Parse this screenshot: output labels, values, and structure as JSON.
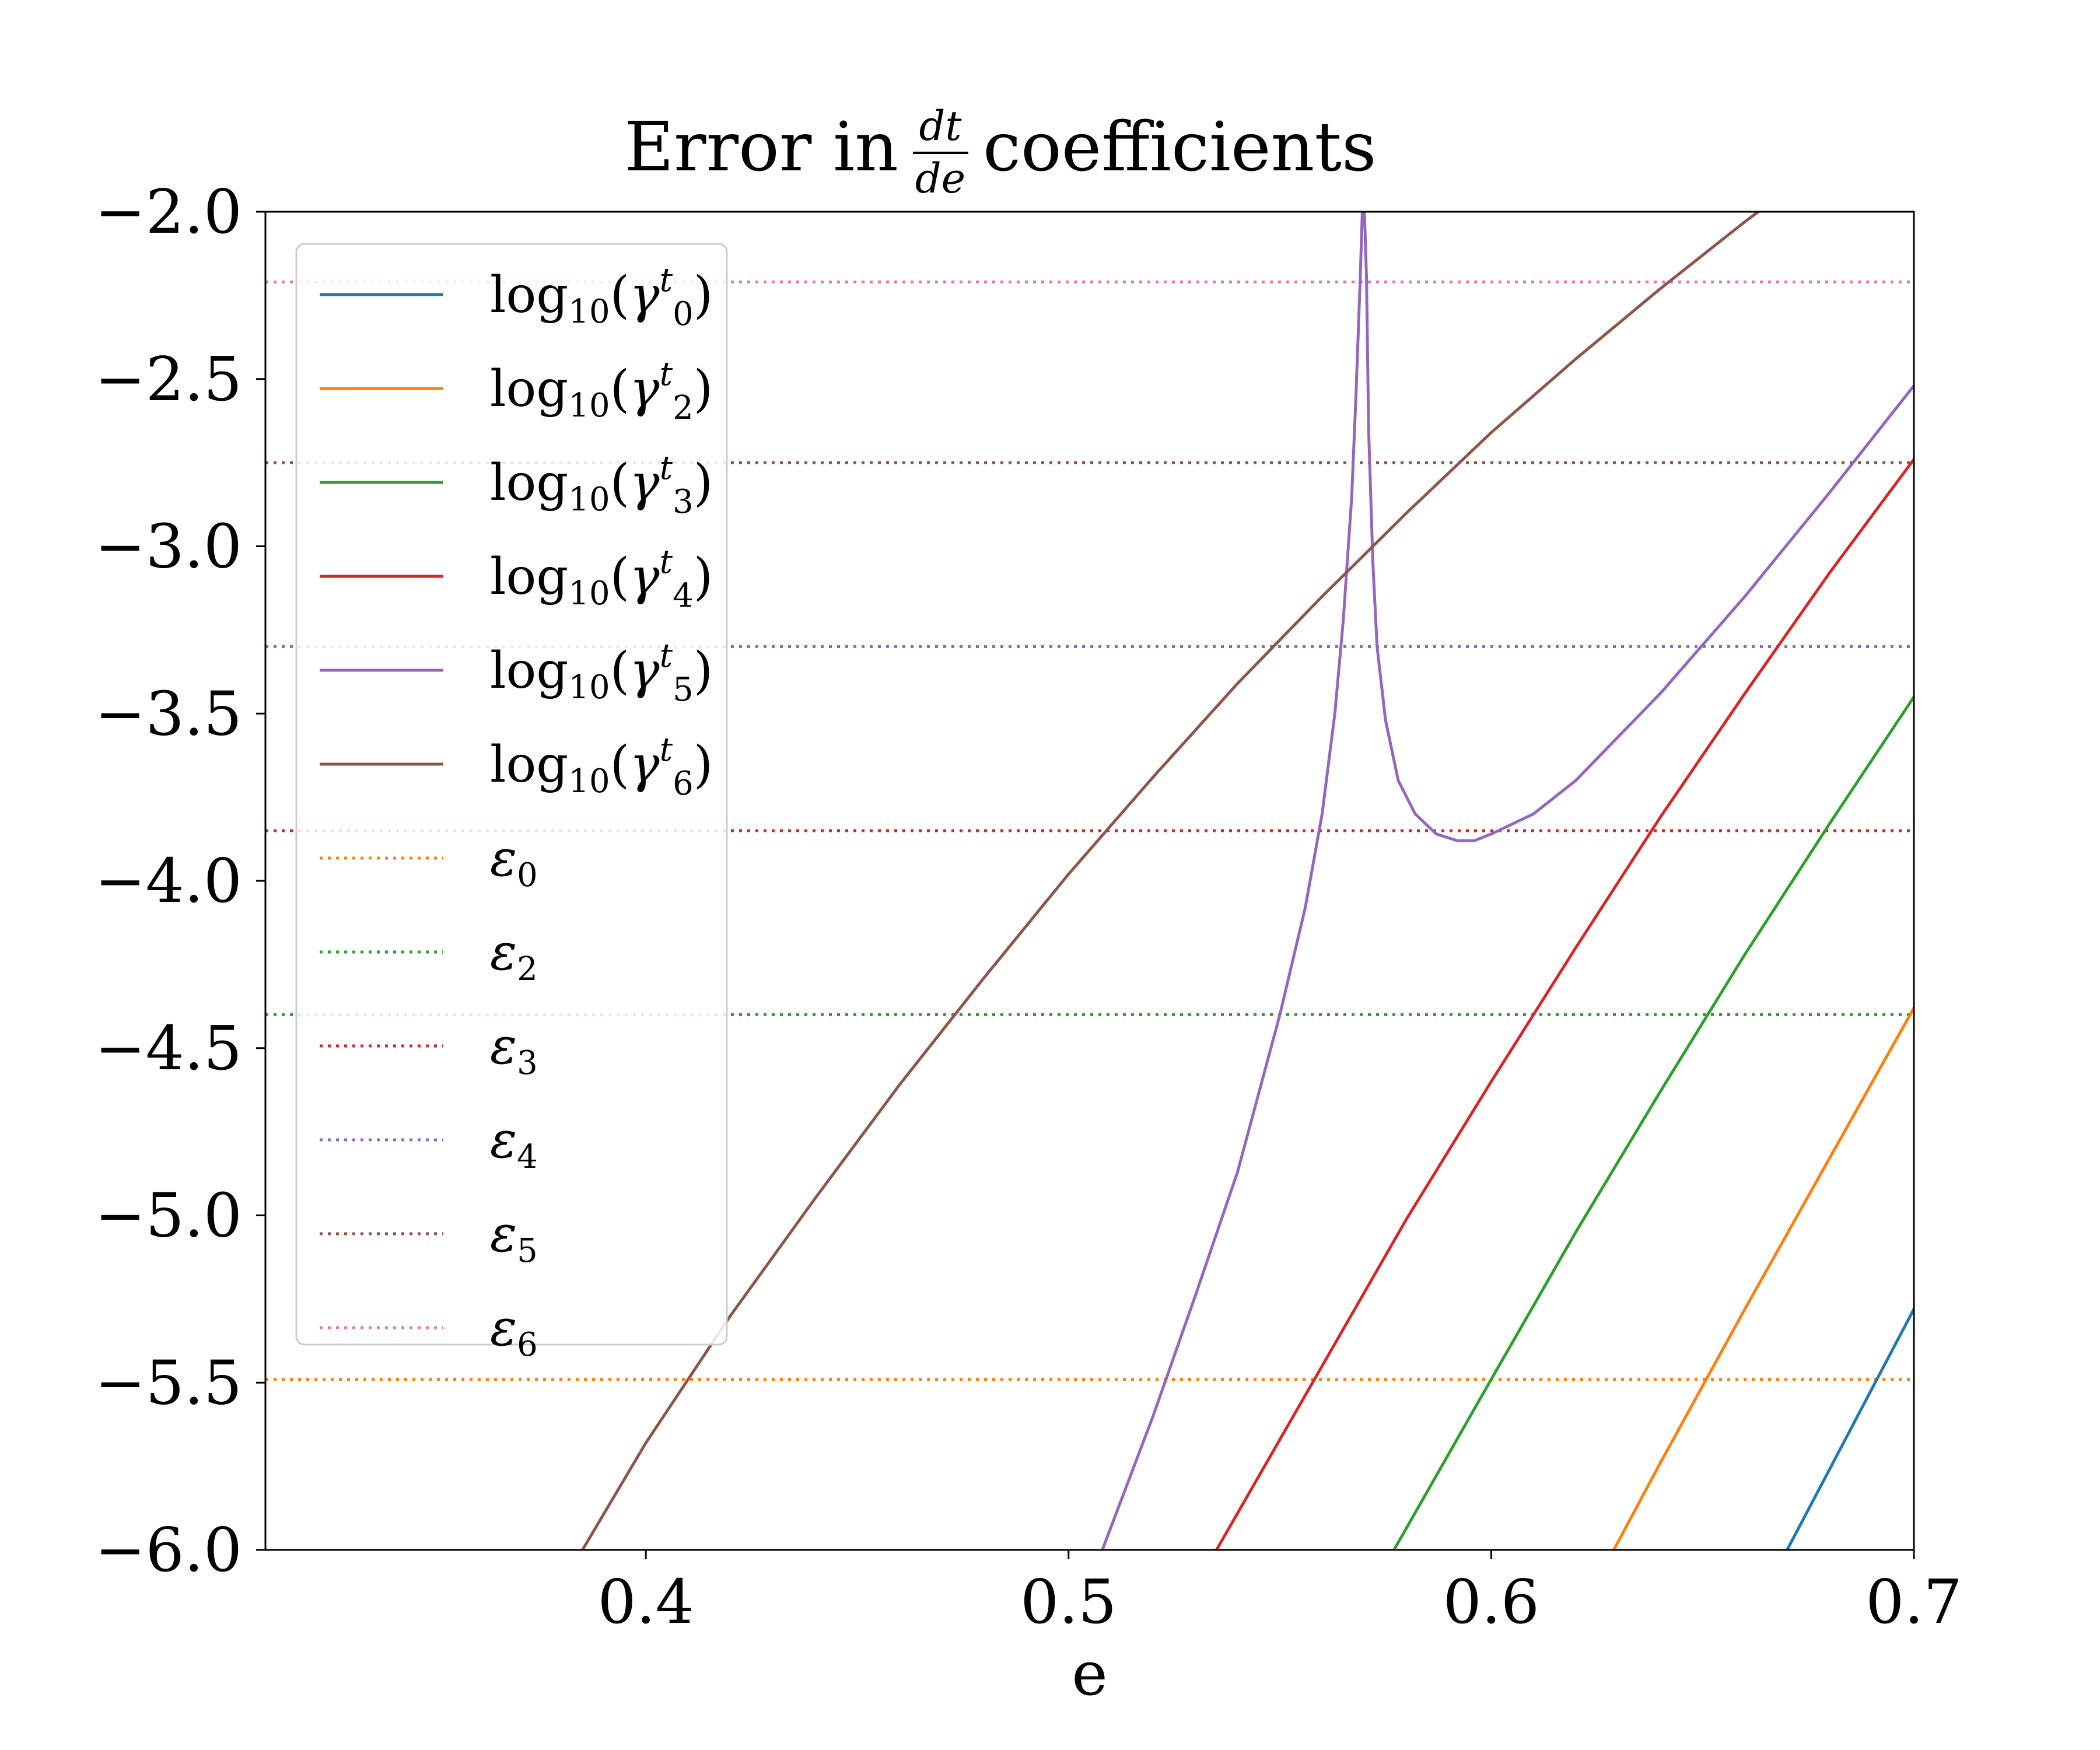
{
  "chart_data": {
    "type": "line",
    "title": {
      "prefix": "Error in",
      "frac_num": "dt",
      "frac_den": "de",
      "suffix": "coefficients"
    },
    "xlabel": "e",
    "ylabel": "",
    "xlim": [
      0.31,
      0.7
    ],
    "ylim": [
      -6.0,
      -2.0
    ],
    "xticks": [
      0.4,
      0.5,
      0.6,
      0.7
    ],
    "xtick_labels": [
      "0.4",
      "0.5",
      "0.6",
      "0.7"
    ],
    "yticks": [
      -2.0,
      -2.5,
      -3.0,
      -3.5,
      -4.0,
      -4.5,
      -5.0,
      -5.5,
      -6.0
    ],
    "ytick_labels": [
      "−2.0",
      "−2.5",
      "−3.0",
      "−3.5",
      "−4.0",
      "−4.5",
      "−5.0",
      "−5.5",
      "−6.0"
    ],
    "grid": false,
    "legend_position": "upper-left",
    "series": [
      {
        "name": "log10(γ0t)",
        "base": "log",
        "sub": "10",
        "greek": "γ",
        "gsub": "0",
        "gsup": "t",
        "color": "#1f77b4",
        "style": "solid",
        "x": [
          0.67,
          0.68,
          0.69,
          0.7
        ],
        "y": [
          -6.0,
          -5.76,
          -5.52,
          -5.28
        ]
      },
      {
        "name": "log10(γ2t)",
        "base": "log",
        "sub": "10",
        "greek": "γ",
        "gsub": "2",
        "gsup": "t",
        "color": "#ff7f0e",
        "style": "solid",
        "x": [
          0.629,
          0.64,
          0.66,
          0.68,
          0.7
        ],
        "y": [
          -6.0,
          -5.74,
          -5.28,
          -4.83,
          -4.38
        ]
      },
      {
        "name": "log10(γ3t)",
        "base": "log",
        "sub": "10",
        "greek": "γ",
        "gsub": "3",
        "gsup": "t",
        "color": "#2ca02c",
        "style": "solid",
        "x": [
          0.577,
          0.6,
          0.62,
          0.64,
          0.66,
          0.68,
          0.7
        ],
        "y": [
          -6.0,
          -5.49,
          -5.05,
          -4.63,
          -4.22,
          -3.83,
          -3.45
        ]
      },
      {
        "name": "log10(γ4t)",
        "base": "log",
        "sub": "10",
        "greek": "γ",
        "gsub": "4",
        "gsup": "t",
        "color": "#d62728",
        "style": "solid",
        "x": [
          0.535,
          0.56,
          0.58,
          0.6,
          0.62,
          0.64,
          0.66,
          0.68,
          0.7
        ],
        "y": [
          -6.0,
          -5.45,
          -5.01,
          -4.6,
          -4.2,
          -3.81,
          -3.44,
          -3.08,
          -2.74
        ]
      },
      {
        "name": "log10(γ5t)",
        "base": "log",
        "sub": "10",
        "greek": "γ",
        "gsub": "5",
        "gsup": "t",
        "color": "#9467bd",
        "style": "solid",
        "x": [
          0.508,
          0.52,
          0.53,
          0.54,
          0.55,
          0.556,
          0.56,
          0.563,
          0.565,
          0.567,
          0.568,
          0.569,
          0.5695,
          0.57,
          0.5705,
          0.571,
          0.572,
          0.573,
          0.575,
          0.578,
          0.582,
          0.587,
          0.592,
          0.596,
          0.6,
          0.61,
          0.62,
          0.64,
          0.66,
          0.68,
          0.7
        ],
        "y": [
          -6.0,
          -5.6,
          -5.24,
          -4.87,
          -4.4,
          -4.08,
          -3.8,
          -3.5,
          -3.22,
          -2.85,
          -2.55,
          -2.2,
          -2.0,
          -2.0,
          -2.2,
          -2.65,
          -3.05,
          -3.3,
          -3.52,
          -3.7,
          -3.8,
          -3.86,
          -3.88,
          -3.88,
          -3.86,
          -3.8,
          -3.7,
          -3.44,
          -3.15,
          -2.84,
          -2.52
        ]
      },
      {
        "name": "log10(γ6t)",
        "base": "log",
        "sub": "10",
        "greek": "γ",
        "gsub": "6",
        "gsup": "t",
        "color": "#8c564b",
        "style": "solid",
        "x": [
          0.385,
          0.4,
          0.42,
          0.44,
          0.46,
          0.48,
          0.5,
          0.52,
          0.54,
          0.56,
          0.58,
          0.6,
          0.62,
          0.64,
          0.66,
          0.68,
          0.7
        ],
        "y": [
          -6.0,
          -5.68,
          -5.3,
          -4.95,
          -4.61,
          -4.29,
          -3.98,
          -3.69,
          -3.41,
          -3.15,
          -2.9,
          -2.66,
          -2.44,
          -2.23,
          -2.03,
          -1.84,
          -1.66
        ]
      },
      {
        "name": "ε0",
        "greek": "ε",
        "gsub": "0",
        "color": "#ff7f0e",
        "style": "dotted",
        "hline": -5.49
      },
      {
        "name": "ε2",
        "greek": "ε",
        "gsub": "2",
        "color": "#2ca02c",
        "style": "dotted",
        "hline": -4.4
      },
      {
        "name": "ε3",
        "greek": "ε",
        "gsub": "3",
        "color": "#d62728",
        "style": "dotted",
        "hline": -3.85
      },
      {
        "name": "ε4",
        "greek": "ε",
        "gsub": "4",
        "color": "#9467bd",
        "style": "dotted",
        "hline": -3.3
      },
      {
        "name": "ε5",
        "greek": "ε",
        "gsub": "5",
        "color": "#8c564b",
        "style": "dotted",
        "hline": -2.75
      },
      {
        "name": "ε6",
        "greek": "ε",
        "gsub": "6",
        "color": "#e377c2",
        "style": "dotted",
        "hline": -2.21
      }
    ]
  }
}
